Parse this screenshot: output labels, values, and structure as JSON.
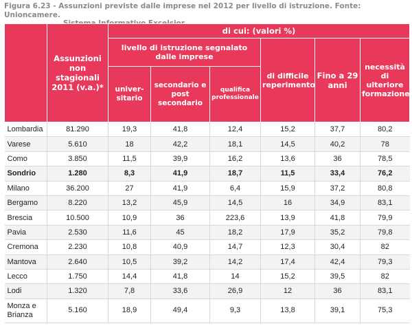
{
  "caption": {
    "line1": "Figura 6.23 - Assunzioni previste dalle imprese nel 2012 per livello di istruzione. Fonte: Unioncamere.",
    "line2": "Sistema Informativo Excelsior"
  },
  "header": {
    "di_cui": "di cui: (valori %)",
    "assunzioni": "Assunzioni non stagionali 2011 (v.a.)*",
    "livello": "livello di istruzione segnalato dalle imprese",
    "universitario": "univer-sitario",
    "secondario": "secondario e post secondario",
    "qualifica": "qualifica professionale",
    "difficile": "di difficile reperimento",
    "fino": "Fino a 29 anni",
    "necessita": "necessità di ulteriore formazione"
  },
  "rows": [
    {
      "name": "Lombardia",
      "assunzioni": "81.290",
      "univ": "19,3",
      "sec": "41,8",
      "qual": "12,4",
      "diff": "15,2",
      "fino": "37,7",
      "form": "80,2"
    },
    {
      "name": "Varese",
      "assunzioni": "5.610",
      "univ": "18",
      "sec": "42,2",
      "qual": "18,1",
      "diff": "14,5",
      "fino": "40,2",
      "form": "78"
    },
    {
      "name": "Como",
      "assunzioni": "3.850",
      "univ": "11,5",
      "sec": "39,9",
      "qual": "16,2",
      "diff": "13,6",
      "fino": "36",
      "form": "78,5"
    },
    {
      "name": "Sondrio",
      "assunzioni": "1.280",
      "univ": "8,3",
      "sec": "41,9",
      "qual": "18,7",
      "diff": "11,5",
      "fino": "33,4",
      "form": "76,2"
    },
    {
      "name": "Milano",
      "assunzioni": "36.200",
      "univ": "27",
      "sec": "41,9",
      "qual": "6,4",
      "diff": "15,9",
      "fino": "37,2",
      "form": "80,8"
    },
    {
      "name": "Bergamo",
      "assunzioni": "8.220",
      "univ": "13,2",
      "sec": "45,9",
      "qual": "14,5",
      "diff": "16",
      "fino": "34,9",
      "form": "83,1"
    },
    {
      "name": "Brescia",
      "assunzioni": "10.500",
      "univ": "10,9",
      "sec": "36",
      "qual": "223,6",
      "diff": "13,9",
      "fino": "41,8",
      "form": "79,9"
    },
    {
      "name": "Pavia",
      "assunzioni": "2.530",
      "univ": "11,6",
      "sec": "45",
      "qual": "18,2",
      "diff": "17,9",
      "fino": "35,2",
      "form": "79,8"
    },
    {
      "name": "Cremona",
      "assunzioni": "2.230",
      "univ": "10,8",
      "sec": "40,9",
      "qual": "14,7",
      "diff": "12,3",
      "fino": "30,4",
      "form": "82"
    },
    {
      "name": "Mantova",
      "assunzioni": "2.640",
      "univ": "10,5",
      "sec": "39,2",
      "qual": "14,2",
      "diff": "17,4",
      "fino": "42,4",
      "form": "79,3"
    },
    {
      "name": "Lecco",
      "assunzioni": "1.750",
      "univ": "14,4",
      "sec": "41,8",
      "qual": "14",
      "diff": "15,2",
      "fino": "39,5",
      "form": "82"
    },
    {
      "name": "Lodi",
      "assunzioni": "1.320",
      "univ": "7,8",
      "sec": "33,6",
      "qual": "26,9",
      "diff": "12",
      "fino": "36",
      "form": "83,1"
    },
    {
      "name": "Monza e Brianza",
      "assunzioni": "5.160",
      "univ": "18,9",
      "sec": "49,4",
      "qual": "9,3",
      "diff": "13,8",
      "fino": "39,1",
      "form": "75,3"
    }
  ]
}
